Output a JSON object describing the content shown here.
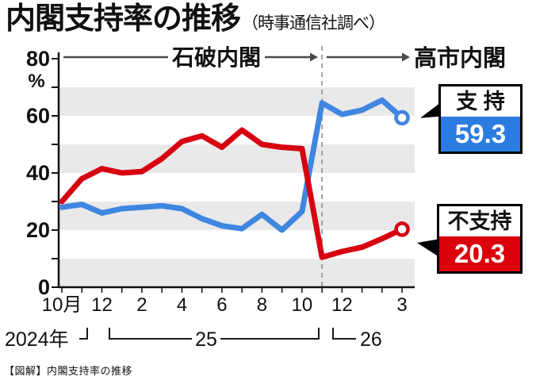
{
  "title": "内閣支持率の推移",
  "subtitle": "（時事通信社調べ）",
  "caption": "【図解】内閣支持率の推移",
  "unit": "%",
  "eras": {
    "ishiba": "石破内閣",
    "takaichi": "高市内閣"
  },
  "callouts": {
    "support": {
      "label": "支 持",
      "value": "59.3",
      "color": "#2b7ce0"
    },
    "opposition": {
      "label": "不支持",
      "value": "20.3",
      "color": "#dc000c"
    }
  },
  "chart_data": {
    "type": "line",
    "title": "内閣支持率の推移（時事通信社調べ）",
    "ylabel": "%",
    "ylim": [
      0,
      80
    ],
    "y_tick_step": 10,
    "y_labeled_ticks": [
      80,
      60,
      40,
      20,
      0
    ],
    "gray_bands": [
      [
        0,
        10
      ],
      [
        20,
        30
      ],
      [
        40,
        50
      ],
      [
        60,
        70
      ]
    ],
    "months": [
      "2024-10",
      "2024-11",
      "2024-12",
      "2025-01",
      "2025-02",
      "2025-03",
      "2025-04",
      "2025-05",
      "2025-06",
      "2025-07",
      "2025-08",
      "2025-09",
      "2025-10",
      "2025-11",
      "2025-12",
      "2026-01",
      "2026-02",
      "2026-03"
    ],
    "x_tick_labels": [
      {
        "index": 0,
        "label": "10月"
      },
      {
        "index": 2,
        "label": "12"
      },
      {
        "index": 4,
        "label": "2"
      },
      {
        "index": 6,
        "label": "4"
      },
      {
        "index": 8,
        "label": "6"
      },
      {
        "index": 10,
        "label": "8"
      },
      {
        "index": 12,
        "label": "10"
      },
      {
        "index": 14,
        "label": "12"
      },
      {
        "index": 17,
        "label": "3"
      }
    ],
    "year_groups": [
      "2024年",
      "25",
      "26"
    ],
    "transition_index": 13,
    "series": [
      {
        "name": "支持",
        "color": "#3f86e0",
        "values": [
          28,
          29,
          26,
          27.5,
          28,
          28.5,
          27.5,
          24,
          21.5,
          20.5,
          25.5,
          20,
          26.5,
          64.5,
          60.5,
          62,
          65.5,
          59.3
        ],
        "final_value": 59.3
      },
      {
        "name": "不支持",
        "color": "#d60010",
        "values": [
          30,
          38,
          41.5,
          40,
          40.5,
          45,
          51,
          53,
          49,
          55,
          50,
          49,
          48.5,
          10.5,
          12.5,
          14,
          17,
          20.3
        ],
        "final_value": 20.3
      }
    ],
    "legend_position": "right-callouts",
    "grid": "horizontal-bands"
  }
}
